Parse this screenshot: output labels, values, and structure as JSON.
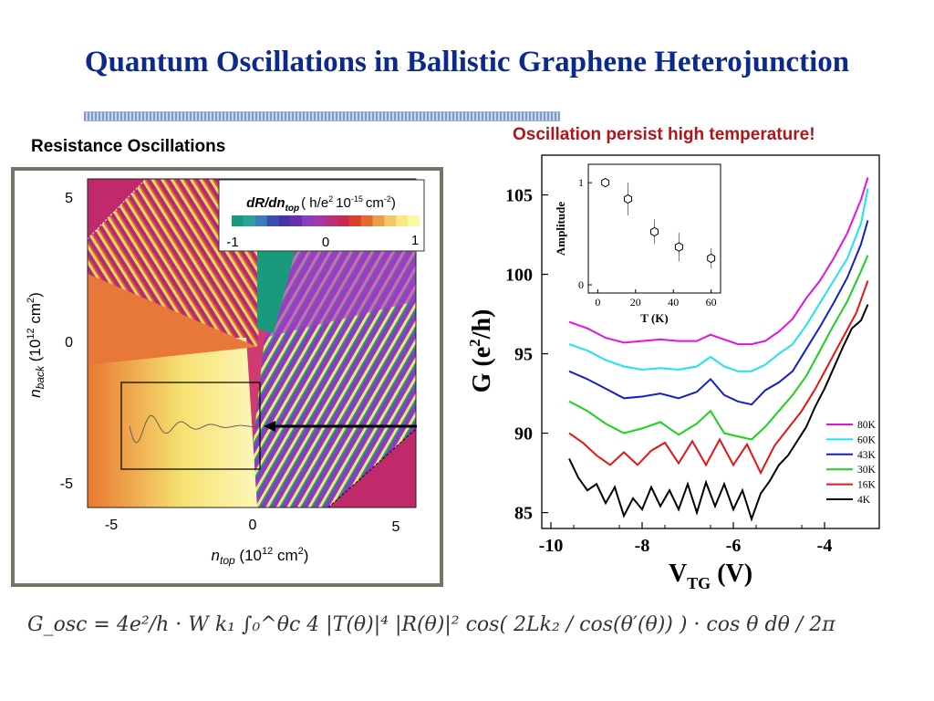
{
  "slide": {
    "title": "Quantum Oscillations in Ballistic Graphene Heterojunction",
    "left_heading": "Resistance Oscillations",
    "right_heading": "Oscillation persist high temperature!",
    "formula": "G_osc = 4e²/h · W k₁ ∫₀^θc 4 |T(θ)|⁴ |R(θ)|² cos( 2Lk₂ / cos(θ′(θ)) ) · cos θ dθ / 2π"
  },
  "map_panel": {
    "colorbar": {
      "title_main": "dR/dn",
      "title_sub": "top",
      "title_units": "( h/e",
      "title_units2": "10",
      "title_units3": "cm",
      "exp1": "2",
      "exp2": "-15",
      "exp3": "-2",
      "close": ")",
      "tick_min": "-1",
      "tick_mid": "0",
      "tick_max": "1",
      "colors": [
        "#1a9a7c",
        "#2aa29a",
        "#3a7fb8",
        "#3b4fb2",
        "#4a32a8",
        "#6a2fb0",
        "#8a3fb8",
        "#a23aa6",
        "#b8317a",
        "#c72a52",
        "#d8402c",
        "#e06a32",
        "#ea9d4a",
        "#f2c864",
        "#f7e884",
        "#faf7a8"
      ]
    },
    "y_axis": {
      "label_pre": "n",
      "label_sub": "back",
      "label_post": " (10",
      "label_exp": "12",
      "label_end": " cm",
      "label_exp2": "2",
      "label_close": ")",
      "ticks": [
        "5",
        "0",
        "-5"
      ]
    },
    "x_axis": {
      "label_pre": "n",
      "label_sub": "top",
      "label_post": " (10",
      "label_exp": "12",
      "label_end": " cm",
      "label_exp2": "2",
      "label_close": ")",
      "ticks": [
        "-5",
        "0",
        "5"
      ]
    }
  },
  "chart_data": [
    {
      "type": "line",
      "title": "",
      "xlabel": "V_TG (V)",
      "ylabel": "G (e²/h)",
      "xlim": [
        -10.2,
        -2.8
      ],
      "ylim": [
        84,
        107.5
      ],
      "xticks": [
        -10,
        -8,
        -6,
        -4
      ],
      "yticks": [
        85,
        90,
        95,
        100,
        105
      ],
      "legend_position": "bottom-right",
      "series": [
        {
          "name": "80K",
          "color": "#e312e3",
          "x": [
            -9.6,
            -9.2,
            -8.8,
            -8.4,
            -8.0,
            -7.6,
            -7.2,
            -6.8,
            -6.5,
            -6.2,
            -5.9,
            -5.6,
            -5.3,
            -5.0,
            -4.7,
            -4.4,
            -4.1,
            -3.8,
            -3.5,
            -3.2,
            -3.05
          ],
          "y": [
            97.0,
            96.6,
            96.0,
            95.7,
            95.8,
            95.9,
            95.8,
            95.8,
            96.2,
            95.9,
            95.6,
            95.6,
            95.8,
            96.4,
            97.2,
            98.5,
            99.6,
            101.0,
            102.6,
            104.7,
            106.1
          ]
        },
        {
          "name": "60K",
          "color": "#1ee4ea",
          "x": [
            -9.6,
            -9.2,
            -8.8,
            -8.4,
            -8.0,
            -7.6,
            -7.2,
            -6.8,
            -6.5,
            -6.2,
            -5.9,
            -5.6,
            -5.3,
            -5.0,
            -4.7,
            -4.4,
            -4.1,
            -3.8,
            -3.5,
            -3.2,
            -3.05
          ],
          "y": [
            95.6,
            95.2,
            94.6,
            94.2,
            94.0,
            94.1,
            94.0,
            94.2,
            94.8,
            94.2,
            93.9,
            93.9,
            94.3,
            95.0,
            95.6,
            96.8,
            98.2,
            99.6,
            101.0,
            103.2,
            105.4
          ]
        },
        {
          "name": "43K",
          "color": "#1420c8",
          "x": [
            -9.6,
            -9.2,
            -8.8,
            -8.4,
            -8.0,
            -7.6,
            -7.2,
            -6.8,
            -6.5,
            -6.2,
            -5.9,
            -5.6,
            -5.3,
            -5.0,
            -4.7,
            -4.4,
            -4.1,
            -3.8,
            -3.5,
            -3.2,
            -3.05
          ],
          "y": [
            93.9,
            93.4,
            92.8,
            92.2,
            92.3,
            92.5,
            92.2,
            92.6,
            93.4,
            92.4,
            92.0,
            91.8,
            92.7,
            93.2,
            93.9,
            95.3,
            96.7,
            98.2,
            99.8,
            101.9,
            103.4
          ]
        },
        {
          "name": "30K",
          "color": "#18d418",
          "x": [
            -9.6,
            -9.2,
            -8.8,
            -8.4,
            -8.0,
            -7.6,
            -7.2,
            -6.8,
            -6.5,
            -6.2,
            -5.9,
            -5.6,
            -5.3,
            -5.0,
            -4.7,
            -4.4,
            -4.1,
            -3.8,
            -3.5,
            -3.2,
            -3.05
          ],
          "y": [
            92.0,
            91.4,
            90.6,
            90.0,
            90.3,
            90.7,
            89.9,
            90.6,
            91.4,
            90.0,
            89.8,
            89.6,
            90.4,
            91.4,
            92.4,
            93.6,
            95.2,
            96.8,
            98.3,
            100.2,
            101.2
          ]
        },
        {
          "name": "16K",
          "color": "#e61414",
          "x": [
            -9.6,
            -9.3,
            -9.0,
            -8.7,
            -8.4,
            -8.1,
            -7.8,
            -7.5,
            -7.2,
            -6.9,
            -6.6,
            -6.3,
            -6.0,
            -5.7,
            -5.4,
            -5.1,
            -4.8,
            -4.5,
            -4.2,
            -3.9,
            -3.6,
            -3.3,
            -3.05
          ],
          "y": [
            90.0,
            89.4,
            88.6,
            88.0,
            88.8,
            88.0,
            88.9,
            89.4,
            88.1,
            89.5,
            88.0,
            89.6,
            88.0,
            89.3,
            87.5,
            89.2,
            90.3,
            91.4,
            92.8,
            94.4,
            96.0,
            97.6,
            99.6
          ]
        },
        {
          "name": "4K",
          "color": "#000000",
          "x": [
            -9.6,
            -9.4,
            -9.2,
            -9.0,
            -8.8,
            -8.6,
            -8.4,
            -8.2,
            -8.0,
            -7.8,
            -7.6,
            -7.4,
            -7.2,
            -7.0,
            -6.8,
            -6.6,
            -6.4,
            -6.2,
            -6.0,
            -5.8,
            -5.6,
            -5.4,
            -5.2,
            -5.0,
            -4.8,
            -4.6,
            -4.4,
            -4.2,
            -4.0,
            -3.8,
            -3.6,
            -3.4,
            -3.2,
            -3.05
          ],
          "y": [
            88.4,
            87.2,
            86.4,
            86.8,
            85.6,
            86.6,
            84.8,
            85.9,
            85.2,
            86.6,
            85.4,
            86.4,
            85.2,
            86.8,
            85.0,
            86.9,
            85.4,
            86.8,
            85.2,
            86.4,
            84.6,
            86.2,
            87.0,
            88.0,
            88.6,
            89.5,
            90.4,
            91.7,
            92.8,
            94.1,
            95.4,
            96.6,
            97.1,
            98.1
          ]
        }
      ]
    },
    {
      "type": "scatter",
      "title": "",
      "xlabel": "T (K)",
      "ylabel": "Amplitude",
      "xlim": [
        -5,
        65
      ],
      "ylim": [
        -0.08,
        1.18
      ],
      "xticks": [
        0,
        20,
        40,
        60
      ],
      "yticks": [
        0,
        1
      ],
      "points": [
        {
          "x": 4,
          "y": 1.0,
          "err": 0.0
        },
        {
          "x": 16,
          "y": 0.84,
          "err": 0.16
        },
        {
          "x": 30,
          "y": 0.52,
          "err": 0.12
        },
        {
          "x": 43,
          "y": 0.37,
          "err": 0.14
        },
        {
          "x": 60,
          "y": 0.26,
          "err": 0.1
        }
      ]
    }
  ]
}
